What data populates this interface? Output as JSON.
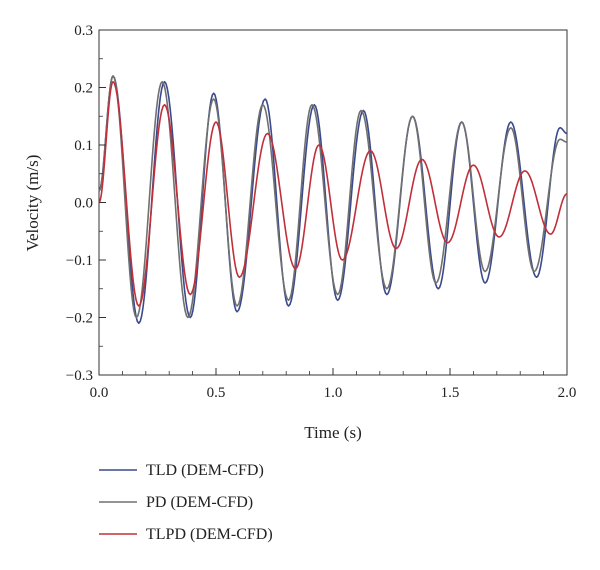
{
  "chart_data": {
    "type": "line",
    "xlabel": "Time (s)",
    "ylabel": "Velocity (m/s)",
    "xlim": [
      0.0,
      2.0
    ],
    "ylim": [
      -0.3,
      0.3
    ],
    "xticks": [
      0.0,
      0.5,
      1.0,
      1.5,
      2.0
    ],
    "xtick_labels": [
      "0.0",
      "0.5",
      "1.0",
      "1.5",
      "2.0"
    ],
    "yticks": [
      -0.3,
      -0.2,
      -0.1,
      0.0,
      0.1,
      0.2,
      0.3
    ],
    "ytick_labels": [
      "−0.3",
      "−0.2",
      "−0.1",
      "0.0",
      "0.1",
      "0.2",
      "0.3"
    ],
    "grid": false,
    "legend": "bottom-left, below plot",
    "series": [
      {
        "name": "TLD (DEM-CFD)",
        "color": "#3a4a8c",
        "x": [
          0.0,
          0.06,
          0.17,
          0.28,
          0.39,
          0.49,
          0.59,
          0.71,
          0.81,
          0.92,
          1.02,
          1.13,
          1.23,
          1.34,
          1.45,
          1.55,
          1.65,
          1.76,
          1.87,
          1.97,
          2.0
        ],
        "y": [
          0.02,
          0.22,
          -0.21,
          0.21,
          -0.2,
          0.19,
          -0.19,
          0.18,
          -0.18,
          0.17,
          -0.17,
          0.16,
          -0.16,
          0.15,
          -0.15,
          0.14,
          -0.14,
          0.14,
          -0.13,
          0.13,
          0.12
        ]
      },
      {
        "name": "PD (DEM-CFD)",
        "color": "#707070",
        "x": [
          0.0,
          0.06,
          0.16,
          0.27,
          0.38,
          0.49,
          0.59,
          0.7,
          0.81,
          0.91,
          1.02,
          1.12,
          1.23,
          1.34,
          1.44,
          1.55,
          1.65,
          1.76,
          1.86,
          1.97,
          2.0
        ],
        "y": [
          0.02,
          0.22,
          -0.2,
          0.21,
          -0.2,
          0.18,
          -0.18,
          0.17,
          -0.17,
          0.17,
          -0.16,
          0.16,
          -0.15,
          0.15,
          -0.14,
          0.14,
          -0.12,
          0.13,
          -0.12,
          0.11,
          0.105
        ]
      },
      {
        "name": "TLPD (DEM-CFD)",
        "color": "#c0303a",
        "x": [
          0.0,
          0.06,
          0.17,
          0.28,
          0.39,
          0.5,
          0.6,
          0.72,
          0.84,
          0.94,
          1.04,
          1.16,
          1.27,
          1.38,
          1.49,
          1.6,
          1.71,
          1.82,
          1.93,
          2.0
        ],
        "y": [
          0.0,
          0.21,
          -0.18,
          0.17,
          -0.16,
          0.14,
          -0.13,
          0.12,
          -0.115,
          0.1,
          -0.1,
          0.09,
          -0.08,
          0.075,
          -0.07,
          0.065,
          -0.06,
          0.055,
          -0.055,
          0.015
        ]
      }
    ]
  }
}
